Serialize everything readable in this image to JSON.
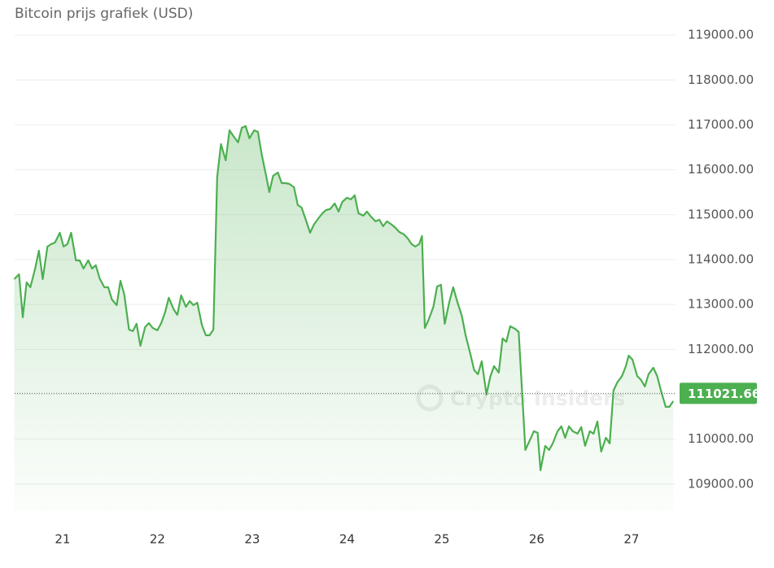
{
  "chart_data": {
    "type": "line",
    "title": "Bitcoin prijs grafiek (USD)",
    "watermark": "Crypto Insiders",
    "color": "#4caf50",
    "grid": true,
    "area": true,
    "xlim": [
      20.494,
      27.464
    ],
    "ylim": [
      108400,
      119400
    ],
    "xticks": [
      21,
      22,
      23,
      24,
      25,
      26,
      27
    ],
    "yticks": [
      {
        "value": 109000,
        "label": "109000.00"
      },
      {
        "value": 110000,
        "label": "110000.00"
      },
      {
        "value": 111000,
        "label": "111000.00"
      },
      {
        "value": 112000,
        "label": "112000.00"
      },
      {
        "value": 113000,
        "label": "113000.00"
      },
      {
        "value": 114000,
        "label": "114000.00"
      },
      {
        "value": 115000,
        "label": "115000.00"
      },
      {
        "value": 116000,
        "label": "116000.00"
      },
      {
        "value": 117000,
        "label": "117000.00"
      },
      {
        "value": 118000,
        "label": "118000.00"
      },
      {
        "value": 119000,
        "label": "119000.00"
      }
    ],
    "current_price": 111021.66,
    "x": [
      20.49,
      20.54,
      20.58,
      20.62,
      20.66,
      20.71,
      20.75,
      20.79,
      20.84,
      20.88,
      20.92,
      20.97,
      21.01,
      21.05,
      21.09,
      21.14,
      21.18,
      21.22,
      21.27,
      21.31,
      21.35,
      21.39,
      21.44,
      21.48,
      21.52,
      21.57,
      21.61,
      21.65,
      21.7,
      21.74,
      21.78,
      21.82,
      21.87,
      21.91,
      21.95,
      22.0,
      22.04,
      22.08,
      22.12,
      22.17,
      22.21,
      22.25,
      22.3,
      22.34,
      22.38,
      22.42,
      22.47,
      22.51,
      22.55,
      22.59,
      22.63,
      22.67,
      22.72,
      22.76,
      22.8,
      22.85,
      22.89,
      22.93,
      22.97,
      23.02,
      23.06,
      23.1,
      23.15,
      23.18,
      23.22,
      23.27,
      23.31,
      23.35,
      23.39,
      23.44,
      23.48,
      23.52,
      23.57,
      23.61,
      23.65,
      23.7,
      23.74,
      23.78,
      23.82,
      23.87,
      23.91,
      23.95,
      24.0,
      24.04,
      24.08,
      24.12,
      24.17,
      24.21,
      24.25,
      24.3,
      24.34,
      24.38,
      24.42,
      24.47,
      24.51,
      24.55,
      24.6,
      24.64,
      24.68,
      24.72,
      24.76,
      24.79,
      24.82,
      24.86,
      24.91,
      24.95,
      24.99,
      25.03,
      25.08,
      25.12,
      25.16,
      25.21,
      25.25,
      25.3,
      25.34,
      25.38,
      25.42,
      25.47,
      25.51,
      25.55,
      25.6,
      25.64,
      25.68,
      25.72,
      25.77,
      25.81,
      25.88,
      25.92,
      25.97,
      26.01,
      26.04,
      26.09,
      26.13,
      26.17,
      26.22,
      26.26,
      26.3,
      26.34,
      26.38,
      26.43,
      26.47,
      26.51,
      26.56,
      26.6,
      26.64,
      26.68,
      26.73,
      26.77,
      26.81,
      26.85,
      26.9,
      26.94,
      26.97,
      27.01,
      27.06,
      27.1,
      27.14,
      27.18,
      27.23,
      27.27,
      27.31,
      27.36,
      27.4,
      27.44
    ],
    "values": [
      113565,
      113674,
      112714,
      113493,
      113384,
      113801,
      114199,
      113565,
      114290,
      114344,
      114380,
      114598,
      114290,
      114344,
      114598,
      113982,
      113982,
      113801,
      113982,
      113801,
      113873,
      113583,
      113384,
      113384,
      113112,
      112985,
      113529,
      113221,
      112442,
      112406,
      112569,
      112080,
      112496,
      112587,
      112478,
      112424,
      112587,
      112822,
      113149,
      112895,
      112768,
      113203,
      112949,
      113076,
      112985,
      113040,
      112533,
      112315,
      112315,
      112442,
      115830,
      116572,
      116210,
      116880,
      116754,
      116609,
      116935,
      116971,
      116699,
      116880,
      116844,
      116337,
      115830,
      115504,
      115866,
      115938,
      115703,
      115703,
      115685,
      115612,
      115214,
      115160,
      114851,
      114598,
      114779,
      114924,
      115033,
      115105,
      115123,
      115250,
      115069,
      115287,
      115377,
      115341,
      115432,
      115033,
      114978,
      115069,
      114960,
      114851,
      114888,
      114743,
      114851,
      114779,
      114706,
      114616,
      114562,
      114471,
      114344,
      114290,
      114344,
      114525,
      112478,
      112659,
      112949,
      113402,
      113438,
      112569,
      113076,
      113384,
      113076,
      112750,
      112315,
      111899,
      111536,
      111446,
      111736,
      110993,
      111391,
      111627,
      111482,
      112243,
      112170,
      112515,
      112460,
      112388,
      109761,
      109942,
      110178,
      110142,
      109308,
      109851,
      109761,
      109906,
      110178,
      110286,
      110033,
      110286,
      110178,
      110123,
      110268,
      109851,
      110178,
      110123,
      110395,
      109725,
      110033,
      109906,
      111083,
      111265,
      111409,
      111627,
      111862,
      111772,
      111409,
      111319,
      111174,
      111446,
      111591,
      111409,
      111083,
      110721,
      110721,
      110848
    ]
  }
}
